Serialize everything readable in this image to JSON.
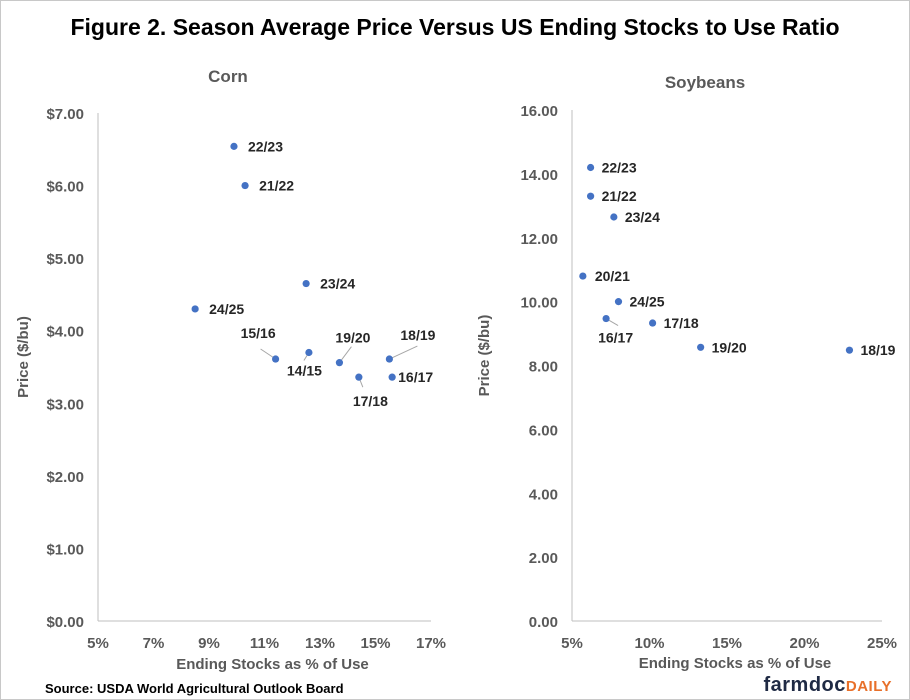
{
  "figure_title": "Figure 2. Season Average Price Versus US Ending Stocks to Use Ratio",
  "source": "Source: USDA World Agricultural Outlook Board",
  "logo": {
    "part1": "farmdoc",
    "part2": "DAILY",
    "color1": "#1f2a44",
    "color2": "#e8702a"
  },
  "colors": {
    "marker": "#4472c4",
    "axis": "#bfbfbf",
    "tick_text": "#595959",
    "label_text": "#262626"
  },
  "chart_data": [
    {
      "id": "corn",
      "type": "scatter",
      "title": "Corn",
      "xlabel": "Ending Stocks as % of Use",
      "ylabel": "Price ($/bu)",
      "xlim": [
        5,
        17
      ],
      "ylim": [
        0,
        7
      ],
      "xticks": [
        "5%",
        "7%",
        "9%",
        "11%",
        "13%",
        "15%",
        "17%"
      ],
      "yticks": [
        "$0.00",
        "$1.00",
        "$2.00",
        "$3.00",
        "$4.00",
        "$5.00",
        "$6.00",
        "$7.00"
      ],
      "grid": false,
      "points": [
        {
          "label": "22/23",
          "x": 9.9,
          "y": 6.54
        },
        {
          "label": "21/22",
          "x": 10.3,
          "y": 6.0
        },
        {
          "label": "23/24",
          "x": 12.5,
          "y": 4.65
        },
        {
          "label": "24/25",
          "x": 8.5,
          "y": 4.3
        },
        {
          "label": "15/16",
          "x": 11.4,
          "y": 3.61
        },
        {
          "label": "14/15",
          "x": 12.6,
          "y": 3.7
        },
        {
          "label": "19/20",
          "x": 13.7,
          "y": 3.56
        },
        {
          "label": "17/18",
          "x": 14.4,
          "y": 3.36
        },
        {
          "label": "18/19",
          "x": 15.5,
          "y": 3.61
        },
        {
          "label": "16/17",
          "x": 15.6,
          "y": 3.36
        }
      ]
    },
    {
      "id": "soybeans",
      "type": "scatter",
      "title": "Soybeans",
      "xlabel": "Ending Stocks as % of Use",
      "ylabel": "Price ($/bu)",
      "xlim": [
        5,
        25
      ],
      "ylim": [
        0,
        16
      ],
      "xticks": [
        "5%",
        "10%",
        "15%",
        "20%",
        "25%"
      ],
      "yticks": [
        "0.00",
        "2.00",
        "4.00",
        "6.00",
        "8.00",
        "10.00",
        "12.00",
        "14.00",
        "16.00"
      ],
      "grid": false,
      "points": [
        {
          "label": "22/23",
          "x": 6.2,
          "y": 14.2
        },
        {
          "label": "21/22",
          "x": 6.2,
          "y": 13.3
        },
        {
          "label": "23/24",
          "x": 7.7,
          "y": 12.65
        },
        {
          "label": "20/21",
          "x": 5.7,
          "y": 10.8
        },
        {
          "label": "24/25",
          "x": 8.0,
          "y": 10.0
        },
        {
          "label": "16/17",
          "x": 7.2,
          "y": 9.47
        },
        {
          "label": "17/18",
          "x": 10.2,
          "y": 9.33
        },
        {
          "label": "19/20",
          "x": 13.3,
          "y": 8.57
        },
        {
          "label": "18/19",
          "x": 22.9,
          "y": 8.48
        }
      ]
    }
  ]
}
